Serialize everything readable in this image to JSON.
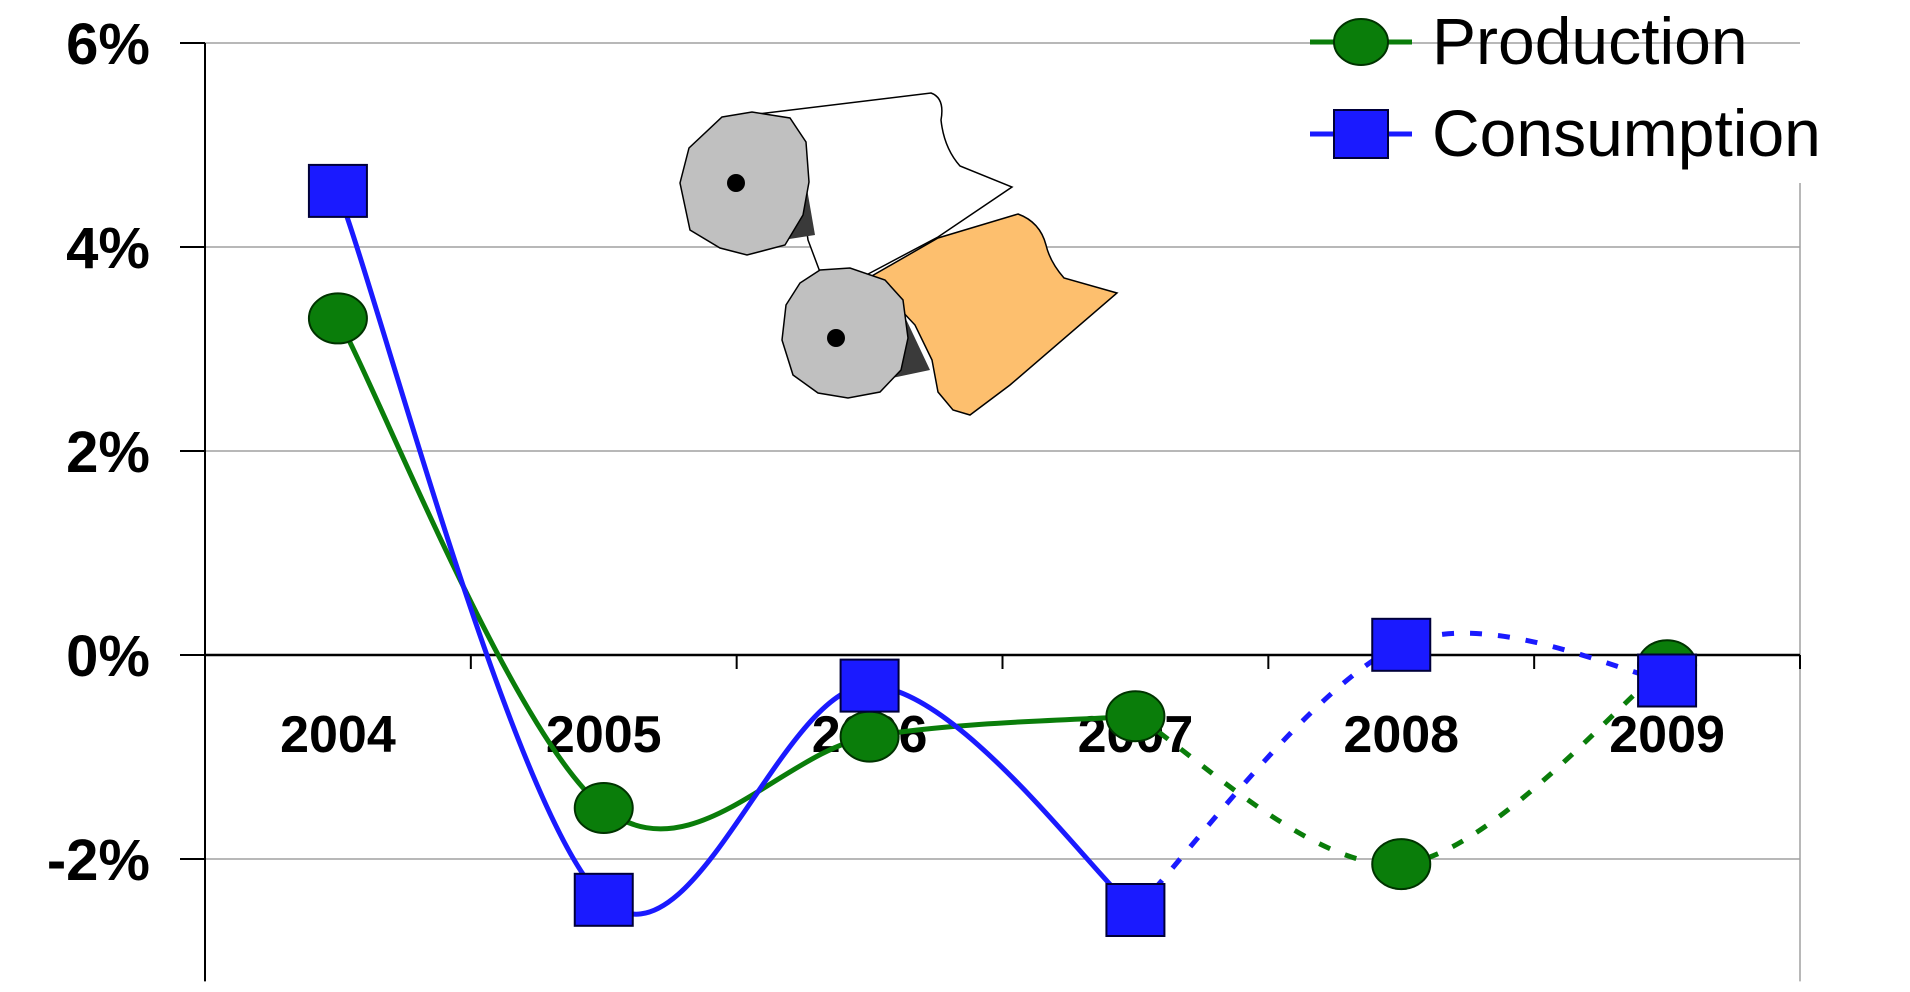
{
  "chart_data": {
    "type": "line",
    "title": "",
    "xlabel": "",
    "ylabel": "",
    "categories": [
      "2004",
      "2005",
      "2006",
      "2007",
      "2008",
      "2009"
    ],
    "ylim": [
      -3.2,
      6
    ],
    "yticks": [
      6,
      4,
      2,
      0,
      -2
    ],
    "ytick_labels": [
      "6%",
      "4%",
      "2%",
      "0%",
      "-2%"
    ],
    "grid": true,
    "legend_position": "top-right",
    "forecast_from_category": "2007",
    "series": [
      {
        "name": "Production",
        "color": "#0a7d0a",
        "marker": "circle",
        "values": [
          3.3,
          -1.5,
          -0.8,
          -0.6,
          -2.05,
          -0.1
        ]
      },
      {
        "name": "Consumption",
        "color": "#1a1aff",
        "marker": "square",
        "values": [
          4.55,
          -2.4,
          -0.3,
          -2.5,
          0.1,
          -0.25
        ]
      }
    ],
    "decoration": "paper-rolls-illustration"
  }
}
